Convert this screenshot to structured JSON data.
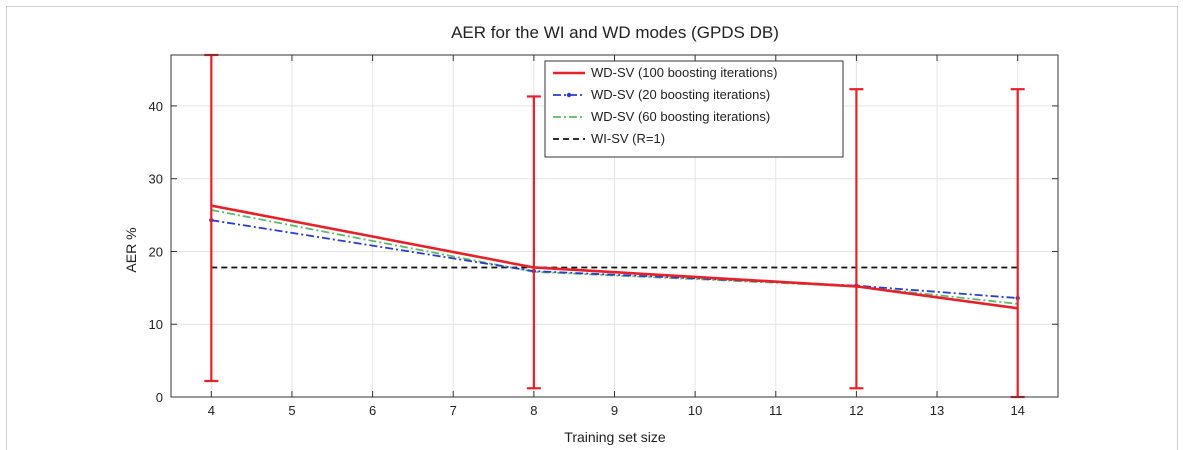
{
  "chart_data": {
    "type": "line",
    "title": "AER for the WI and WD modes  (GPDS DB)",
    "xlabel": "Training set size",
    "ylabel": "AER %",
    "xlim": [
      3.5,
      14.5
    ],
    "ylim": [
      0,
      47
    ],
    "xticks": [
      4,
      5,
      6,
      7,
      8,
      9,
      10,
      11,
      12,
      13,
      14
    ],
    "yticks": [
      0,
      10,
      20,
      30,
      40
    ],
    "grid": true,
    "legend_position": "top-right",
    "series": [
      {
        "name": "WD-SV (100 boosting iterations)",
        "color": "#e8202a",
        "style": "solid",
        "x": [
          4,
          8,
          12,
          14
        ],
        "y": [
          26.3,
          17.8,
          15.2,
          12.2
        ],
        "error_low": [
          2.2,
          1.2,
          1.2,
          0.0
        ],
        "error_high": [
          47.0,
          41.3,
          42.3,
          42.3
        ]
      },
      {
        "name": "WD-SV (20 boosting iterations)",
        "color": "#2a3cc8",
        "style": "dash-dot",
        "x": [
          4,
          8,
          12,
          14
        ],
        "y": [
          24.3,
          17.3,
          15.3,
          13.6
        ]
      },
      {
        "name": "WD-SV (60 boosting iterations)",
        "color": "#5fb86a",
        "style": "dash-dot",
        "x": [
          4,
          8,
          12,
          14
        ],
        "y": [
          25.7,
          17.2,
          15.2,
          12.8
        ]
      },
      {
        "name": "WI-SV (R=1)",
        "color": "#111111",
        "style": "dashed",
        "x": [
          4,
          14
        ],
        "y": [
          17.8,
          17.8
        ]
      }
    ]
  }
}
